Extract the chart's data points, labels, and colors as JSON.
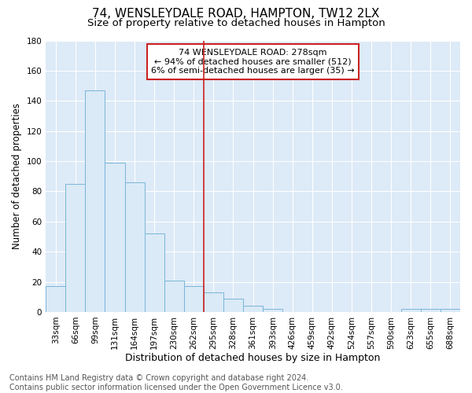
{
  "title": "74, WENSLEYDALE ROAD, HAMPTON, TW12 2LX",
  "subtitle": "Size of property relative to detached houses in Hampton",
  "xlabel": "Distribution of detached houses by size in Hampton",
  "ylabel": "Number of detached properties",
  "footer": "Contains HM Land Registry data © Crown copyright and database right 2024.\nContains public sector information licensed under the Open Government Licence v3.0.",
  "categories": [
    "33sqm",
    "66sqm",
    "99sqm",
    "131sqm",
    "164sqm",
    "197sqm",
    "230sqm",
    "262sqm",
    "295sqm",
    "328sqm",
    "361sqm",
    "393sqm",
    "426sqm",
    "459sqm",
    "492sqm",
    "524sqm",
    "557sqm",
    "590sqm",
    "623sqm",
    "655sqm",
    "688sqm"
  ],
  "values": [
    17,
    85,
    147,
    99,
    86,
    52,
    21,
    17,
    13,
    9,
    4,
    2,
    0,
    0,
    0,
    0,
    0,
    0,
    2,
    2,
    2
  ],
  "bar_color": "#daeaf7",
  "bar_edge_color": "#7ab5d8",
  "plot_bg_color": "#ddeaf7",
  "fig_bg_color": "#ffffff",
  "grid_color": "#ffffff",
  "vline_x_index": 8,
  "vline_color": "#cc2222",
  "annotation_text": "74 WENSLEYDALE ROAD: 278sqm\n← 94% of detached houses are smaller (512)\n6% of semi-detached houses are larger (35) →",
  "annotation_box_edgecolor": "#cc2222",
  "annotation_box_facecolor": "#ffffff",
  "ylim": [
    0,
    180
  ],
  "yticks": [
    0,
    20,
    40,
    60,
    80,
    100,
    120,
    140,
    160,
    180
  ],
  "title_fontsize": 11,
  "subtitle_fontsize": 9.5,
  "xlabel_fontsize": 9,
  "ylabel_fontsize": 8.5,
  "tick_fontsize": 7.5,
  "annotation_fontsize": 8,
  "footer_fontsize": 7
}
